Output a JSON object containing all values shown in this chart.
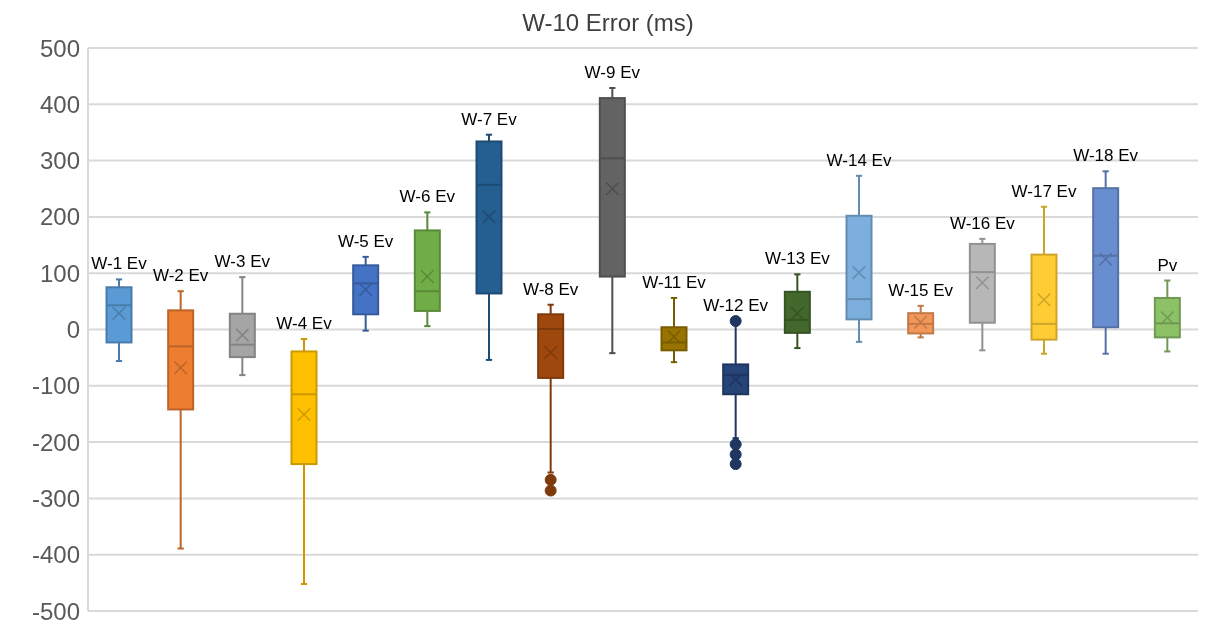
{
  "chart_data": {
    "type": "box",
    "title": "W-10 Error (ms)",
    "categories": [
      "W-1 Ev",
      "W-2 Ev",
      "W-3 Ev",
      "W-4 Ev",
      "W-5 Ev",
      "W-6 Ev",
      "W-7 Ev",
      "W-8 Ev",
      "W-9 Ev",
      "W-11 Ev",
      "W-12 Ev",
      "W-13 Ev",
      "W-14 Ev",
      "W-15 Ev",
      "W-16 Ev",
      "W-17 Ev",
      "W-18 Ev",
      "Pv"
    ],
    "colors": [
      "#5b9bd5",
      "#ed7d31",
      "#a5a5a5",
      "#ffc000",
      "#4472c4",
      "#70ad47",
      "#255e91",
      "#9e480e",
      "#636363",
      "#997300",
      "#264478",
      "#43682b",
      "#7cafdd",
      "#f1975a",
      "#b7b7b7",
      "#ffcd33",
      "#698ed0",
      "#8cc168"
    ],
    "boxes": [
      {
        "low": -56,
        "q1": -23,
        "median": 43,
        "q3": 75,
        "high": 89,
        "mean": 29
      },
      {
        "low": -389,
        "q1": -142,
        "median": -30,
        "q3": 34,
        "high": 68,
        "mean": -68
      },
      {
        "low": -81,
        "q1": -49,
        "median": -27,
        "q3": 28,
        "high": 93,
        "mean": -10
      },
      {
        "low": -452,
        "q1": -239,
        "median": -115,
        "q3": -39,
        "high": -17,
        "mean": -151
      },
      {
        "low": -2,
        "q1": 27,
        "median": 82,
        "q3": 114,
        "high": 129,
        "mean": 71
      },
      {
        "low": 6,
        "q1": 33,
        "median": 68,
        "q3": 176,
        "high": 208,
        "mean": 94
      },
      {
        "low": -54,
        "q1": 64,
        "median": 257,
        "q3": 334,
        "high": 346,
        "mean": 200
      },
      {
        "low": -254,
        "q1": -86,
        "median": 1,
        "q3": 27,
        "high": 44,
        "mean": -41,
        "outliers": [
          -267,
          -286
        ]
      },
      {
        "low": -42,
        "q1": 94,
        "median": 304,
        "q3": 411,
        "high": 429,
        "mean": 250
      },
      {
        "low": -58,
        "q1": -37,
        "median": -23,
        "q3": 4,
        "high": 56,
        "mean": -13
      },
      {
        "low": -193,
        "q1": -115,
        "median": -81,
        "q3": -62,
        "high": 15,
        "mean": -89,
        "outliers": [
          15,
          -204,
          -222,
          -239
        ]
      },
      {
        "low": -33,
        "q1": -6,
        "median": 17,
        "q3": 67,
        "high": 98,
        "mean": 29
      },
      {
        "low": -22,
        "q1": 18,
        "median": 54,
        "q3": 202,
        "high": 273,
        "mean": 101
      },
      {
        "low": -14,
        "q1": -7,
        "median": 10,
        "q3": 29,
        "high": 42,
        "mean": 13
      },
      {
        "low": -37,
        "q1": 12,
        "median": 102,
        "q3": 152,
        "high": 161,
        "mean": 83
      },
      {
        "low": -43,
        "q1": -18,
        "median": 10,
        "q3": 133,
        "high": 218,
        "mean": 53
      },
      {
        "low": -43,
        "q1": 4,
        "median": 131,
        "q3": 251,
        "high": 281,
        "mean": 125
      },
      {
        "low": -39,
        "q1": -14,
        "median": 11,
        "q3": 56,
        "high": 87,
        "mean": 21
      }
    ],
    "ylim": [
      -500,
      500
    ],
    "yticks": [
      -500,
      -400,
      -300,
      -200,
      -100,
      0,
      100,
      200,
      300,
      400,
      500
    ],
    "grid": "y",
    "tick_labels": "y"
  }
}
